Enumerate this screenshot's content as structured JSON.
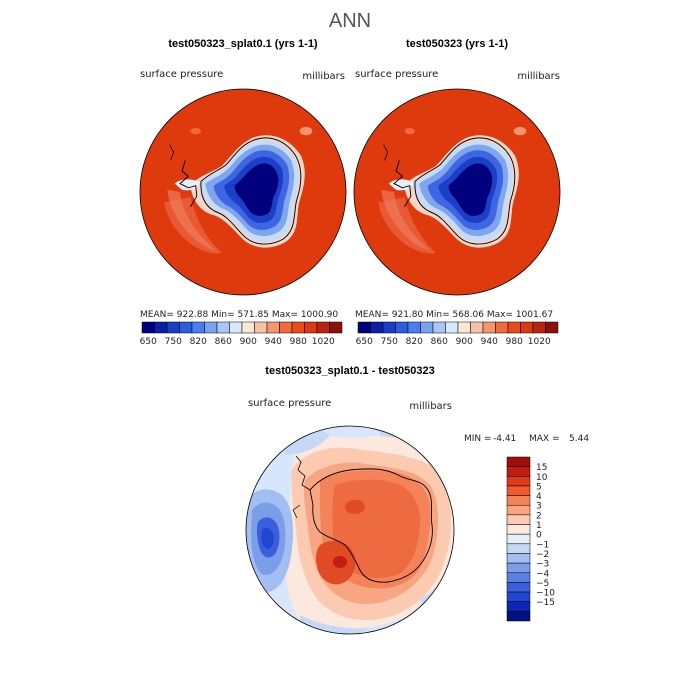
{
  "page": {
    "title": "ANN"
  },
  "panels": [
    {
      "id": "test",
      "title": "test050323_splat0.1 (yrs 1-1)",
      "variable": "surface pressure",
      "units": "millibars",
      "stats": {
        "mean": "922.88",
        "min": "571.85",
        "max": "1000.90"
      },
      "stats_text": "MEAN= 922.88   Min= 571.85   Max= 1000.90"
    },
    {
      "id": "control",
      "title": "test050323 (yrs 1-1)",
      "variable": "surface pressure",
      "units": "millibars",
      "stats": {
        "mean": "921.80",
        "min": "568.06",
        "max": "1001.67"
      },
      "stats_text": "MEAN= 921.80   Min= 568.06   Max= 1001.67"
    }
  ],
  "colorbar_top": {
    "colors": [
      "#00007f",
      "#0a1fa8",
      "#1b3ec8",
      "#2e5ee0",
      "#4a7ef0",
      "#7aa2f2",
      "#a9c6f6",
      "#d8e8fb",
      "#fde6d6",
      "#f8c1a6",
      "#f4956f",
      "#ef6a3f",
      "#e84a1c",
      "#d93a12",
      "#bb2410",
      "#8c0f08"
    ],
    "tick_labels": [
      "650",
      "750",
      "820",
      "860",
      "900",
      "940",
      "980",
      "1020"
    ]
  },
  "diff_panel": {
    "title": "test050323_splat0.1 - test050323",
    "variable": "surface pressure",
    "units": "millibars",
    "min_label": "MIN =",
    "min_value": "-4.41",
    "max_label": "MAX =",
    "max_value": "5.44",
    "legend_colors": [
      "#9e0f0a",
      "#c11e10",
      "#de3a1a",
      "#ee5a2e",
      "#f4835a",
      "#f7a582",
      "#fbcab0",
      "#fde8dc",
      "#e6eefb",
      "#c6d8f6",
      "#a3bff1",
      "#7c9ee9",
      "#5a7ee2",
      "#3b5fdc",
      "#2345d6",
      "#0c25b6",
      "#00137f"
    ],
    "legend_labels": [
      "15",
      "10",
      "5",
      "4",
      "3",
      "2",
      "1",
      "0",
      "−1",
      "−2",
      "−3",
      "−4",
      "−5",
      "−10",
      "−15"
    ]
  },
  "chart_data": [
    {
      "type": "heatmap",
      "title": "test050323_splat0.1 (yrs 1-1)",
      "variable": "surface pressure",
      "units": "millibars",
      "projection": "south polar stereographic",
      "mean": 922.88,
      "min": 571.85,
      "max": 1000.9,
      "contour_levels": [
        650,
        700,
        750,
        780,
        820,
        840,
        860,
        880,
        900,
        920,
        940,
        960,
        980,
        1000,
        1020
      ]
    },
    {
      "type": "heatmap",
      "title": "test050323 (yrs 1-1)",
      "variable": "surface pressure",
      "units": "millibars",
      "projection": "south polar stereographic",
      "mean": 921.8,
      "min": 568.06,
      "max": 1001.67,
      "contour_levels": [
        650,
        700,
        750,
        780,
        820,
        840,
        860,
        880,
        900,
        920,
        940,
        960,
        980,
        1000,
        1020
      ]
    },
    {
      "type": "heatmap",
      "title": "test050323_splat0.1 - test050323",
      "variable": "surface pressure",
      "units": "millibars",
      "projection": "south polar stereographic",
      "min": -4.41,
      "max": 5.44,
      "contour_levels": [
        -15,
        -10,
        -5,
        -4,
        -3,
        -2,
        -1,
        0,
        1,
        2,
        3,
        4,
        5,
        10,
        15
      ]
    }
  ]
}
